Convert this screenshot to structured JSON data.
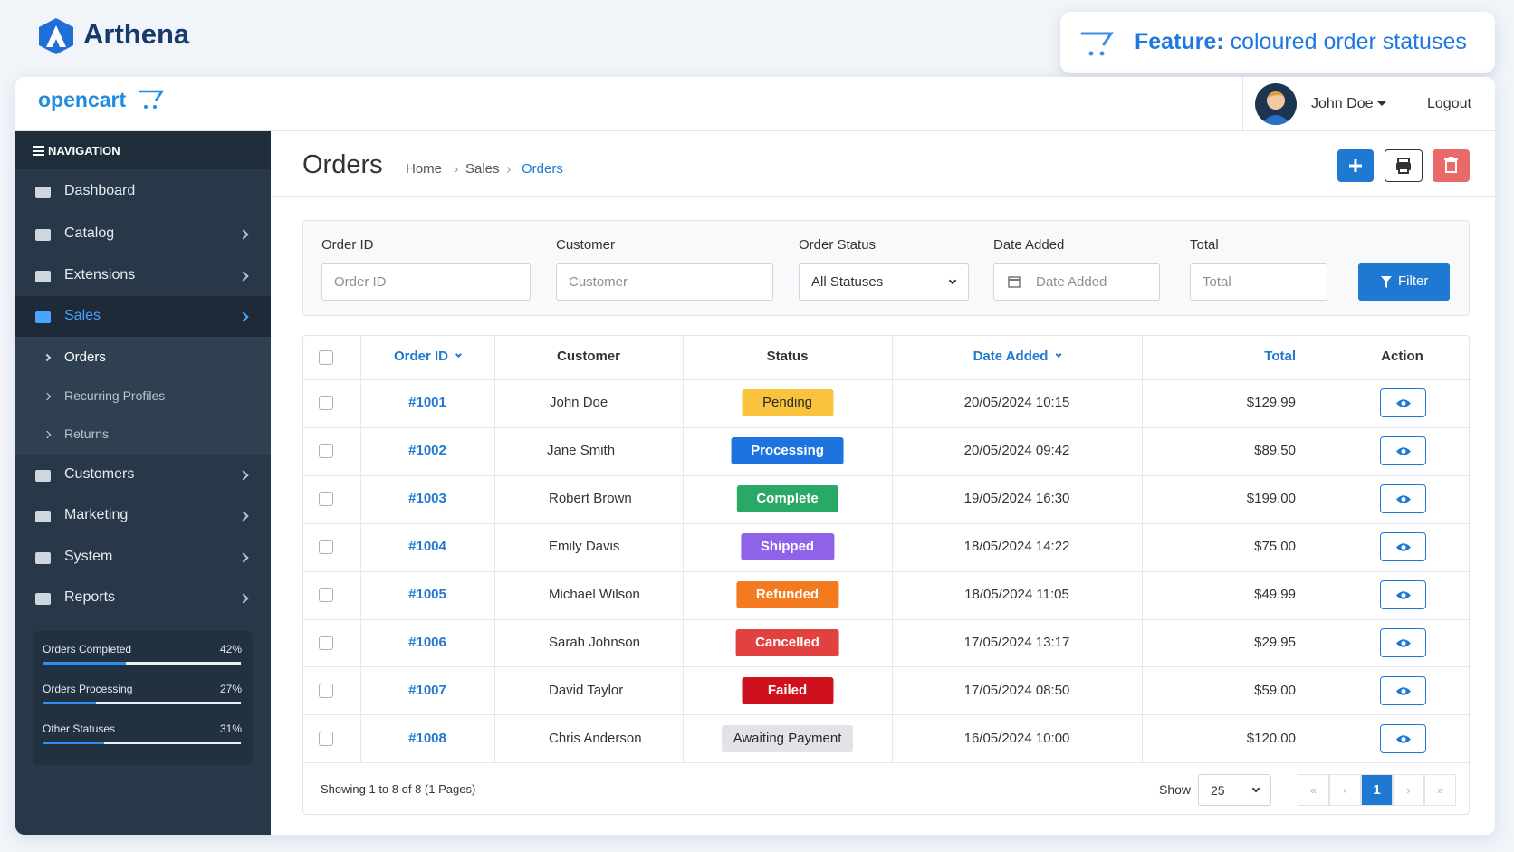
{
  "brand": "Arthena",
  "feature": {
    "label": "Feature:",
    "text": "coloured order statuses"
  },
  "header": {
    "logo": "opencart",
    "user": "John Doe",
    "logout": "Logout"
  },
  "navigation": {
    "title": "NAVIGATION",
    "items": [
      "Dashboard",
      "Catalog",
      "Extensions",
      "Sales",
      "Customers",
      "Marketing",
      "System",
      "Reports"
    ],
    "sales_children": [
      "Orders",
      "Recurring Profiles",
      "Returns"
    ]
  },
  "stats": [
    {
      "label": "Orders Completed",
      "value": 42,
      "value_label": "42%"
    },
    {
      "label": "Orders Processing",
      "value": 27,
      "value_label": "27%"
    },
    {
      "label": "Other Statuses",
      "value": 31,
      "value_label": "31%"
    }
  ],
  "page": {
    "title": "Orders",
    "breadcrumb": [
      "Home",
      "Sales",
      "Orders"
    ]
  },
  "filter": {
    "fields": [
      {
        "label": "Order ID",
        "placeholder": "Order ID"
      },
      {
        "label": "Customer",
        "placeholder": "Customer"
      },
      {
        "label": "Order Status",
        "placeholder": "All Statuses"
      },
      {
        "label": "Date Added",
        "placeholder": "Date Added"
      },
      {
        "label": "Total",
        "placeholder": "Total"
      }
    ],
    "button": "Filter"
  },
  "table": {
    "columns": [
      "Order ID",
      "Customer",
      "Status",
      "Date Added",
      "Total",
      "Action"
    ],
    "rows": [
      {
        "order_id": "#1001",
        "customer": "John Doe",
        "status": "Pending",
        "status_color": "#f9c33d",
        "status_text_color": "#2a2a2a",
        "date_added": "20/05/2024 10:15",
        "total": "$129.99"
      },
      {
        "order_id": "#1002",
        "customer": "Jane Smith",
        "status": "Processing",
        "status_color": "#1e74de",
        "status_text_color": "#ffffff",
        "date_added": "20/05/2024 09:42",
        "total": "$89.50"
      },
      {
        "order_id": "#1003",
        "customer": "Robert Brown",
        "status": "Complete",
        "status_color": "#2aa866",
        "status_text_color": "#ffffff",
        "date_added": "19/05/2024 16:30",
        "total": "$199.00"
      },
      {
        "order_id": "#1004",
        "customer": "Emily Davis",
        "status": "Shipped",
        "status_color": "#8e63ea",
        "status_text_color": "#ffffff",
        "date_added": "18/05/2024 14:22",
        "total": "$75.00"
      },
      {
        "order_id": "#1005",
        "customer": "Michael Wilson",
        "status": "Refunded",
        "status_color": "#f47a20",
        "status_text_color": "#ffffff",
        "date_added": "18/05/2024 11:05",
        "total": "$49.99"
      },
      {
        "order_id": "#1006",
        "customer": "Sarah Johnson",
        "status": "Cancelled",
        "status_color": "#e2423f",
        "status_text_color": "#ffffff",
        "date_added": "17/05/2024 13:17",
        "total": "$29.95"
      },
      {
        "order_id": "#1007",
        "customer": "David Taylor",
        "status": "Failed",
        "status_color": "#cf111d",
        "status_text_color": "#ffffff",
        "date_added": "17/05/2024 08:50",
        "total": "$59.00"
      },
      {
        "order_id": "#1008",
        "customer": "Chris Anderson",
        "status": "Awaiting Payment",
        "status_color": "#e1e3e6",
        "status_text_color": "#2a2a2a",
        "date_added": "16/05/2024 10:00",
        "total": "$120.00"
      }
    ]
  },
  "footer": {
    "summary": "Showing 1 to 8 of 8 (1 Pages)",
    "show_label": "Show",
    "page_size": "25",
    "pagination": [
      "«",
      "‹",
      "1",
      "›",
      "»"
    ]
  }
}
